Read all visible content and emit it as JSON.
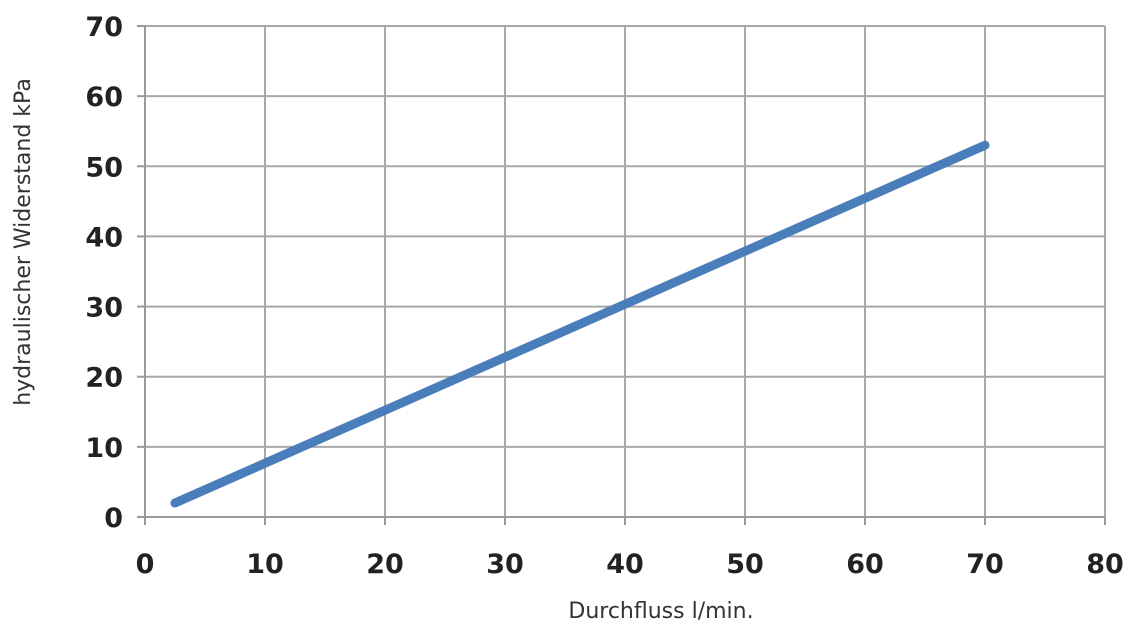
{
  "chart_data": {
    "type": "line",
    "title": "",
    "xlabel": "Durchfluss l/min.",
    "ylabel": "hydraulischer Widerstand kPa",
    "xlim": [
      0,
      80
    ],
    "ylim": [
      0,
      70
    ],
    "xticks": [
      0,
      10,
      20,
      30,
      40,
      50,
      60,
      70,
      80
    ],
    "yticks": [
      0,
      10,
      20,
      30,
      40,
      50,
      60,
      70
    ],
    "grid": true,
    "legend": "none",
    "series": [
      {
        "color": "#4a7ebb",
        "x": [
          2.5,
          70
        ],
        "y": [
          2,
          53
        ]
      }
    ]
  }
}
